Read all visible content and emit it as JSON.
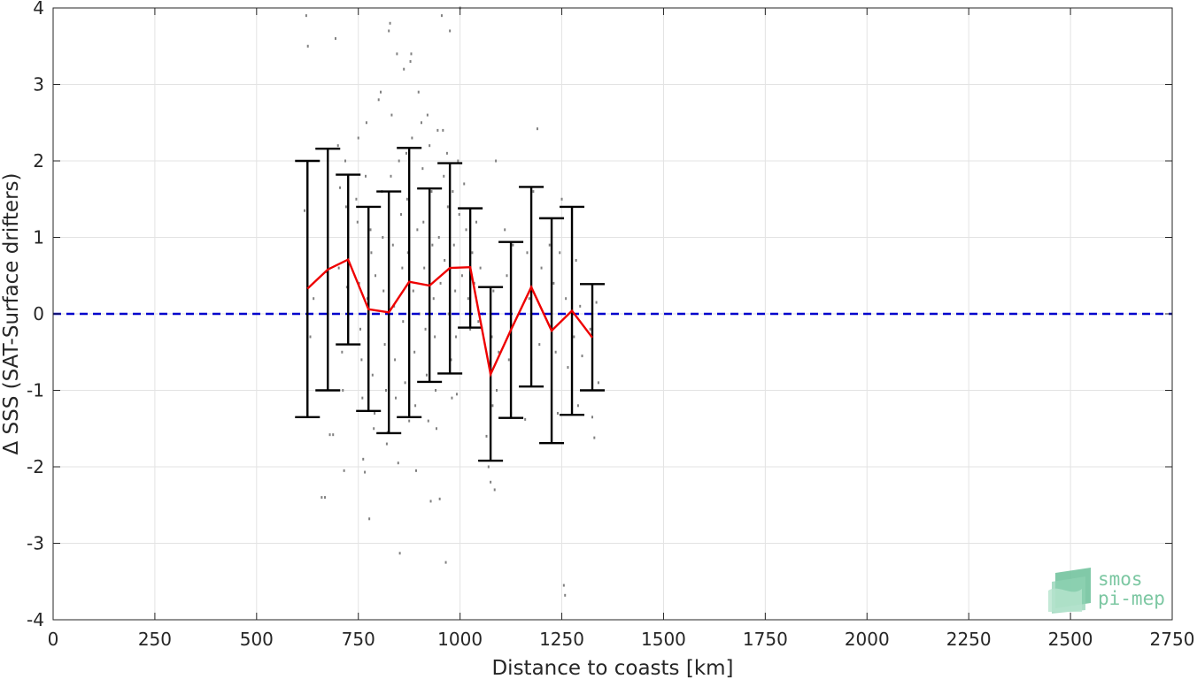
{
  "chart_data": {
    "type": "scatter",
    "title": "",
    "xlabel": "Distance to coasts [km]",
    "ylabel": "Δ SSS (SAT-Surface drifters)",
    "xlim": [
      0,
      2750
    ],
    "ylim": [
      -4,
      4
    ],
    "x_ticks": [
      0,
      250,
      500,
      750,
      1000,
      1250,
      1500,
      1750,
      2000,
      2250,
      2500,
      2750
    ],
    "y_ticks": [
      -4,
      -3,
      -2,
      -1,
      0,
      1,
      2,
      3,
      4
    ],
    "grid": true,
    "reference_line": {
      "y": 0,
      "style": "dashed",
      "color": "#0000cc"
    },
    "binned": {
      "x": [
        625,
        675,
        725,
        775,
        825,
        875,
        925,
        975,
        1025,
        1075,
        1125,
        1175,
        1225,
        1275,
        1325
      ],
      "mean": [
        0.33,
        0.58,
        0.71,
        0.06,
        0.02,
        0.42,
        0.37,
        0.6,
        0.61,
        -0.79,
        -0.21,
        0.35,
        -0.22,
        0.04,
        -0.31
      ],
      "upper": [
        2.0,
        2.16,
        1.82,
        1.4,
        1.6,
        2.17,
        1.64,
        1.97,
        1.38,
        0.35,
        0.94,
        1.66,
        1.25,
        1.4,
        0.39
      ],
      "lower": [
        -1.35,
        -1.0,
        -0.4,
        -1.27,
        -1.56,
        -1.35,
        -0.89,
        -0.78,
        -0.18,
        -1.92,
        -1.36,
        -0.95,
        -1.69,
        -1.32,
        -1.0
      ],
      "mean_color": "#ee0000",
      "errorbar_color": "#000000"
    },
    "scatter_points": [
      [
        622,
        3.9
      ],
      [
        626,
        3.5
      ],
      [
        618,
        1.35
      ],
      [
        640,
        0.2
      ],
      [
        632,
        -0.3
      ],
      [
        660,
        -2.4
      ],
      [
        668,
        -2.4
      ],
      [
        672,
        0.55
      ],
      [
        680,
        -1.58
      ],
      [
        688,
        -1.58
      ],
      [
        694,
        3.6
      ],
      [
        700,
        2.2
      ],
      [
        705,
        1.65
      ],
      [
        702,
        0.6
      ],
      [
        710,
        -0.5
      ],
      [
        712,
        -1.0
      ],
      [
        715,
        -2.05
      ],
      [
        718,
        2.0
      ],
      [
        720,
        1.4
      ],
      [
        722,
        0.35
      ],
      [
        745,
        1.5
      ],
      [
        748,
        1.2
      ],
      [
        750,
        2.3
      ],
      [
        752,
        0.4
      ],
      [
        755,
        -0.2
      ],
      [
        758,
        -0.6
      ],
      [
        760,
        -1.1
      ],
      [
        762,
        -1.9
      ],
      [
        766,
        -2.07
      ],
      [
        768,
        1.8
      ],
      [
        770,
        2.5
      ],
      [
        772,
        0.2
      ],
      [
        775,
        -0.3
      ],
      [
        777,
        -2.68
      ],
      [
        780,
        1.1
      ],
      [
        782,
        0.8
      ],
      [
        785,
        -0.8
      ],
      [
        788,
        -1.5
      ],
      [
        790,
        -1.3
      ],
      [
        792,
        0.5
      ],
      [
        800,
        2.8
      ],
      [
        805,
        2.9
      ],
      [
        808,
        1.6
      ],
      [
        810,
        1.0
      ],
      [
        812,
        0.3
      ],
      [
        815,
        -0.4
      ],
      [
        818,
        -1.0
      ],
      [
        820,
        -1.7
      ],
      [
        822,
        -1.55
      ],
      [
        825,
        3.7
      ],
      [
        828,
        3.8
      ],
      [
        830,
        1.8
      ],
      [
        832,
        2.6
      ],
      [
        835,
        0.9
      ],
      [
        838,
        0.1
      ],
      [
        840,
        -0.6
      ],
      [
        842,
        -1.1
      ],
      [
        845,
        3.4
      ],
      [
        848,
        -1.95
      ],
      [
        850,
        2.0
      ],
      [
        852,
        -3.13
      ],
      [
        855,
        1.3
      ],
      [
        858,
        0.6
      ],
      [
        860,
        -0.1
      ],
      [
        862,
        3.2
      ],
      [
        865,
        -0.9
      ],
      [
        868,
        2.1
      ],
      [
        870,
        1.5
      ],
      [
        872,
        0.8
      ],
      [
        875,
        -1.4
      ],
      [
        878,
        3.3
      ],
      [
        880,
        3.4
      ],
      [
        882,
        2.3
      ],
      [
        885,
        0.3
      ],
      [
        888,
        -0.5
      ],
      [
        890,
        -1.2
      ],
      [
        892,
        -2.05
      ],
      [
        895,
        1.1
      ],
      [
        898,
        2.9
      ],
      [
        900,
        0.0
      ],
      [
        905,
        2.5
      ],
      [
        908,
        1.9
      ],
      [
        910,
        1.2
      ],
      [
        912,
        0.6
      ],
      [
        915,
        -0.2
      ],
      [
        918,
        -0.8
      ],
      [
        920,
        2.6
      ],
      [
        922,
        -1.4
      ],
      [
        925,
        2.2
      ],
      [
        928,
        -2.45
      ],
      [
        930,
        1.6
      ],
      [
        932,
        0.9
      ],
      [
        935,
        0.2
      ],
      [
        938,
        -0.3
      ],
      [
        940,
        -1.0
      ],
      [
        942,
        -1.5
      ],
      [
        945,
        2.4
      ],
      [
        948,
        1.0
      ],
      [
        950,
        -2.42
      ],
      [
        952,
        0.4
      ],
      [
        955,
        3.9
      ],
      [
        958,
        2.4
      ],
      [
        960,
        1.8
      ],
      [
        962,
        0.7
      ],
      [
        965,
        -3.25
      ],
      [
        968,
        2.1
      ],
      [
        970,
        1.4
      ],
      [
        972,
        0.0
      ],
      [
        975,
        3.7
      ],
      [
        978,
        -0.6
      ],
      [
        980,
        -1.1
      ],
      [
        982,
        1.6
      ],
      [
        985,
        0.9
      ],
      [
        988,
        0.3
      ],
      [
        990,
        -0.3
      ],
      [
        992,
        -1.05
      ],
      [
        995,
        2.0
      ],
      [
        998,
        1.3
      ],
      [
        1000,
        4.0
      ],
      [
        1005,
        0.5
      ],
      [
        1010,
        1.7
      ],
      [
        1015,
        1.1
      ],
      [
        1020,
        0.2
      ],
      [
        1025,
        -0.2
      ],
      [
        1030,
        0.8
      ],
      [
        1035,
        0.4
      ],
      [
        1040,
        1.2
      ],
      [
        1045,
        -0.1
      ],
      [
        1050,
        0.6
      ],
      [
        1055,
        0.0
      ],
      [
        1065,
        -1.6
      ],
      [
        1070,
        -2.0
      ],
      [
        1075,
        -2.2
      ],
      [
        1078,
        -0.3
      ],
      [
        1080,
        -1.2
      ],
      [
        1082,
        0.3
      ],
      [
        1085,
        -2.3
      ],
      [
        1088,
        2.0
      ],
      [
        1090,
        -1.0
      ],
      [
        1095,
        -0.5
      ],
      [
        1110,
        1.1
      ],
      [
        1115,
        0.5
      ],
      [
        1120,
        -0.6
      ],
      [
        1125,
        -1.3
      ],
      [
        1130,
        0.9
      ],
      [
        1160,
        -1.38
      ],
      [
        1165,
        0.8
      ],
      [
        1170,
        0.2
      ],
      [
        1175,
        -0.6
      ],
      [
        1180,
        1.6
      ],
      [
        1190,
        2.42
      ],
      [
        1195,
        -0.4
      ],
      [
        1200,
        0.6
      ],
      [
        1220,
        0.9
      ],
      [
        1225,
        -1.0
      ],
      [
        1230,
        0.4
      ],
      [
        1235,
        -0.5
      ],
      [
        1240,
        -1.3
      ],
      [
        1245,
        0.8
      ],
      [
        1250,
        1.5
      ],
      [
        1255,
        -3.55
      ],
      [
        1258,
        -3.68
      ],
      [
        1260,
        0.2
      ],
      [
        1265,
        -0.7
      ],
      [
        1280,
        -0.3
      ],
      [
        1285,
        0.7
      ],
      [
        1290,
        -1.2
      ],
      [
        1295,
        0.1
      ],
      [
        1300,
        -0.55
      ],
      [
        1320,
        -0.2
      ],
      [
        1325,
        -1.35
      ],
      [
        1330,
        -1.62
      ],
      [
        1335,
        0.15
      ],
      [
        1340,
        -0.9
      ]
    ],
    "scatter_color": "#808080"
  },
  "logo": {
    "line1": "smos",
    "line2": "pi-mep"
  }
}
